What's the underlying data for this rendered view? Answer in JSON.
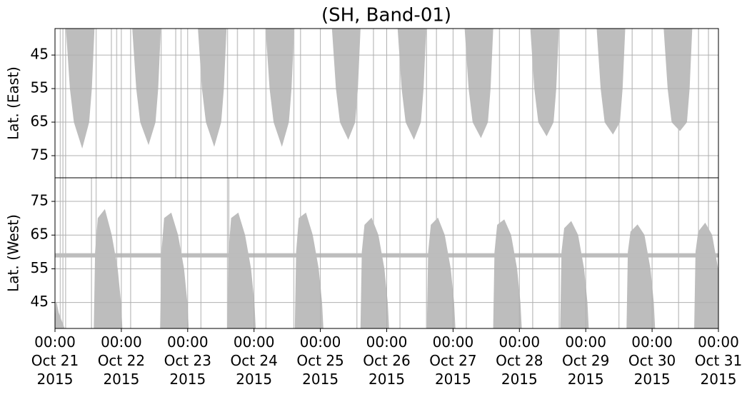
{
  "chart_data": [
    {
      "type": "area",
      "title": "(SH, Band-01)",
      "ylabel": "Lat. (East)",
      "xlim": [
        0,
        10
      ],
      "ylim": [
        37.1,
        81.6
      ],
      "invert_y": true,
      "yticks": [
        45,
        55,
        65,
        75
      ],
      "grid": true,
      "gaps": [
        0.08,
        0.12,
        0.16,
        0.62,
        0.85,
        0.93,
        1.14,
        1.6,
        1.82,
        1.9,
        2.2,
        2.6,
        2.75,
        3.18,
        3.6,
        3.7,
        4.55,
        4.8,
        5.2,
        5.6,
        5.75,
        6.2,
        6.7,
        7.2,
        7.6,
        8.5,
        8.7,
        9.4,
        9.7,
        9.85
      ],
      "series": [
        {
          "color": "#bdbdbd",
          "x": [
            0.17,
            0.23,
            0.29,
            0.41,
            0.51,
            0.55,
            0.59
          ],
          "values": [
            37.1,
            55,
            65,
            72.5,
            65,
            55,
            37.1
          ]
        },
        {
          "color": "#bdbdbd",
          "x": [
            1.17,
            1.23,
            1.29,
            1.41,
            1.51,
            1.55,
            1.59
          ],
          "values": [
            37.1,
            55,
            65,
            71.5,
            65,
            55,
            37.1
          ]
        },
        {
          "color": "#bdbdbd",
          "x": [
            2.16,
            2.22,
            2.28,
            2.4,
            2.5,
            2.54,
            2.58
          ],
          "values": [
            37.1,
            55,
            65,
            72,
            65,
            55,
            37.1
          ]
        },
        {
          "color": "#bdbdbd",
          "x": [
            3.18,
            3.24,
            3.3,
            3.42,
            3.52,
            3.56,
            3.6
          ],
          "values": [
            37.1,
            55,
            65,
            72,
            65,
            55,
            37.1
          ]
        },
        {
          "color": "#bdbdbd",
          "x": [
            4.18,
            4.24,
            4.3,
            4.42,
            4.52,
            4.56,
            4.6
          ],
          "values": [
            37.1,
            55,
            65,
            70,
            65,
            55,
            37.1
          ]
        },
        {
          "color": "#bdbdbd",
          "x": [
            5.17,
            5.23,
            5.29,
            5.41,
            5.51,
            5.55,
            5.59
          ],
          "values": [
            37.1,
            55,
            65,
            70,
            65,
            55,
            37.1
          ]
        },
        {
          "color": "#bdbdbd",
          "x": [
            6.18,
            6.24,
            6.3,
            6.42,
            6.52,
            6.56,
            6.6
          ],
          "values": [
            37.1,
            55,
            65,
            69.5,
            65,
            55,
            37.1
          ]
        },
        {
          "color": "#bdbdbd",
          "x": [
            7.17,
            7.23,
            7.29,
            7.41,
            7.51,
            7.55,
            7.59
          ],
          "values": [
            37.1,
            55,
            65,
            69,
            65,
            55,
            37.1
          ]
        },
        {
          "color": "#bdbdbd",
          "x": [
            8.17,
            8.23,
            8.29,
            8.41,
            8.51,
            8.55,
            8.59
          ],
          "values": [
            37.1,
            55,
            65,
            68.5,
            65,
            55,
            37.1
          ]
        },
        {
          "color": "#bdbdbd",
          "x": [
            9.18,
            9.24,
            9.3,
            9.42,
            9.52,
            9.56,
            9.6
          ],
          "values": [
            37.1,
            55,
            65,
            67.5,
            65,
            55,
            37.1
          ]
        }
      ]
    },
    {
      "type": "area",
      "ylabel": "Lat. (West)",
      "xlim": [
        0,
        10
      ],
      "ylim": [
        37.3,
        82
      ],
      "yticks": [
        45,
        55,
        65,
        75
      ],
      "grid": true,
      "band": 59,
      "gaps": [
        0.08,
        0.12,
        0.16,
        0.55,
        0.62,
        0.93,
        1.14,
        1.6,
        1.9,
        2.2,
        2.6,
        2.62,
        3.18,
        3.6,
        3.7,
        4.55,
        4.8,
        5.2,
        5.6,
        5.75,
        6.2,
        6.7,
        7.2,
        7.6,
        8.5,
        8.7,
        9.4,
        9.7,
        9.85
      ],
      "xticks": [
        {
          "value": 0,
          "label": "00:00\nOct 21\n2015"
        },
        {
          "value": 1,
          "label": "00:00\nOct 22\n2015"
        },
        {
          "value": 2,
          "label": "00:00\nOct 23\n2015"
        },
        {
          "value": 3,
          "label": "00:00\nOct 24\n2015"
        },
        {
          "value": 4,
          "label": "00:00\nOct 25\n2015"
        },
        {
          "value": 5,
          "label": "00:00\nOct 26\n2015"
        },
        {
          "value": 6,
          "label": "00:00\nOct 27\n2015"
        },
        {
          "value": 7,
          "label": "00:00\nOct 28\n2015"
        },
        {
          "value": 8,
          "label": "00:00\nOct 29\n2015"
        },
        {
          "value": 9,
          "label": "00:00\nOct 30\n2015"
        },
        {
          "value": 10,
          "label": "00:00\nOct 31\n2015"
        }
      ],
      "series": [
        {
          "color": "#bdbdbd",
          "x": [
            0,
            0.02,
            0.05,
            0.14
          ],
          "values": [
            37.3,
            45,
            42,
            37.3
          ]
        },
        {
          "color": "#bdbdbd",
          "x": [
            0.59,
            0.61,
            0.65,
            0.75,
            0.85,
            0.94,
            0.99,
            1.01
          ],
          "values": [
            37.3,
            60,
            70,
            72.5,
            65,
            55,
            45,
            37.3
          ]
        },
        {
          "color": "#bdbdbd",
          "x": [
            1.59,
            1.61,
            1.65,
            1.75,
            1.85,
            1.94,
            1.99,
            2.01
          ],
          "values": [
            37.3,
            60,
            70,
            71.5,
            65,
            55,
            45,
            37.3
          ]
        },
        {
          "color": "#bdbdbd",
          "x": [
            2.6,
            2.62,
            2.66,
            2.76,
            2.86,
            2.95,
            3.0,
            3.02
          ],
          "values": [
            37.3,
            60,
            70,
            71.5,
            65,
            55,
            45,
            37.3
          ]
        },
        {
          "color": "#bdbdbd",
          "x": [
            3.62,
            3.64,
            3.68,
            3.78,
            3.88,
            3.97,
            4.02,
            4.04
          ],
          "values": [
            37.3,
            60,
            70,
            71.5,
            65,
            55,
            45,
            37.3
          ]
        },
        {
          "color": "#bdbdbd",
          "x": [
            4.61,
            4.63,
            4.67,
            4.77,
            4.87,
            4.96,
            5.01,
            5.03
          ],
          "values": [
            37.3,
            60,
            68,
            70,
            65,
            55,
            45,
            37.3
          ]
        },
        {
          "color": "#bdbdbd",
          "x": [
            5.61,
            5.63,
            5.67,
            5.77,
            5.87,
            5.96,
            6.01,
            6.03
          ],
          "values": [
            37.3,
            60,
            68,
            70,
            65,
            55,
            45,
            37.3
          ]
        },
        {
          "color": "#bdbdbd",
          "x": [
            6.61,
            6.63,
            6.67,
            6.77,
            6.87,
            6.96,
            7.01,
            7.03
          ],
          "values": [
            37.3,
            60,
            68,
            69.5,
            65,
            55,
            45,
            37.3
          ]
        },
        {
          "color": "#bdbdbd",
          "x": [
            7.62,
            7.64,
            7.68,
            7.78,
            7.88,
            7.97,
            8.02,
            8.04
          ],
          "values": [
            37.3,
            60,
            67,
            69,
            65,
            55,
            45,
            37.3
          ]
        },
        {
          "color": "#bdbdbd",
          "x": [
            8.62,
            8.64,
            8.68,
            8.78,
            8.88,
            8.97,
            9.02,
            9.04
          ],
          "values": [
            37.3,
            60,
            66,
            68,
            65,
            55,
            45,
            37.3
          ]
        },
        {
          "color": "#bdbdbd",
          "x": [
            9.64,
            9.66,
            9.7,
            9.8,
            9.9,
            9.99,
            10.04,
            10.06
          ],
          "values": [
            37.3,
            60,
            66,
            68.5,
            65,
            55,
            45,
            37.3
          ]
        }
      ]
    }
  ]
}
